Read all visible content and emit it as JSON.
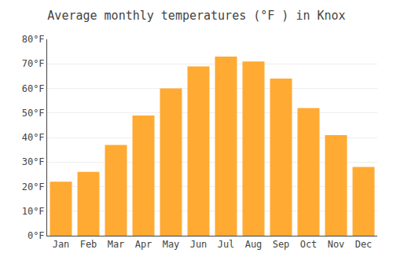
{
  "chart_data": {
    "type": "bar",
    "title": "Average monthly temperatures (°F ) in Knox",
    "categories": [
      "Jan",
      "Feb",
      "Mar",
      "Apr",
      "May",
      "Jun",
      "Jul",
      "Aug",
      "Sep",
      "Oct",
      "Nov",
      "Dec"
    ],
    "values": [
      22,
      26,
      37,
      49,
      60,
      69,
      73,
      71,
      64,
      52,
      41,
      28
    ],
    "color": "#FFAA33",
    "ylim": [
      0,
      80
    ],
    "yticks": [
      {
        "value": 0,
        "label": "0°F"
      },
      {
        "value": 10,
        "label": "10°F"
      },
      {
        "value": 20,
        "label": "20°F"
      },
      {
        "value": 30,
        "label": "30°F"
      },
      {
        "value": 40,
        "label": "40°F"
      },
      {
        "value": 50,
        "label": "50°F"
      },
      {
        "value": 60,
        "label": "60°F"
      },
      {
        "value": 70,
        "label": "70°F"
      },
      {
        "value": 80,
        "label": "80°F"
      }
    ],
    "grid": true
  }
}
